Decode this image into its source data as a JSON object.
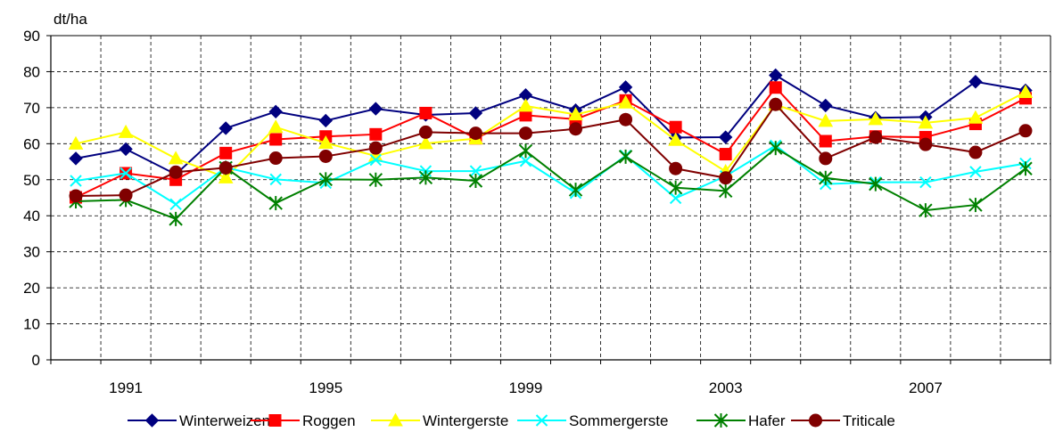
{
  "chart_data": {
    "type": "line",
    "title": "",
    "ylabel": "dt/ha",
    "xlabel": "",
    "ylim": [
      0,
      90
    ],
    "yticks": [
      "0",
      "10",
      "20",
      "30",
      "40",
      "50",
      "60",
      "70",
      "80",
      "90"
    ],
    "x": [
      1990,
      1991,
      1992,
      1993,
      1994,
      1995,
      1996,
      1997,
      1998,
      1999,
      2000,
      2001,
      2002,
      2003,
      2004,
      2005,
      2006,
      2007,
      2008,
      2009
    ],
    "xtick_labels": [
      "1991",
      "1995",
      "1999",
      "2003",
      "2007"
    ],
    "xtick_years": [
      1991,
      1995,
      1999,
      2003,
      2007
    ],
    "grid": "dashed",
    "legend_position": "bottom",
    "series": [
      {
        "name": "Winterweizen",
        "color": "#00007F",
        "marker": "diamond",
        "values": [
          55.9,
          58.5,
          51.5,
          64.3,
          68.9,
          66.4,
          69.7,
          68.0,
          68.5,
          73.5,
          69.3,
          75.7,
          61.7,
          61.8,
          79.0,
          70.6,
          67.2,
          67.4,
          77.2,
          74.8
        ]
      },
      {
        "name": "Roggen",
        "color": "#FF0000",
        "marker": "square",
        "values": [
          45.1,
          51.8,
          50.0,
          57.4,
          61.2,
          62.0,
          62.6,
          68.5,
          61.5,
          67.9,
          66.8,
          72.0,
          64.6,
          57.1,
          75.6,
          60.7,
          62.0,
          61.8,
          65.5,
          72.6
        ]
      },
      {
        "name": "Wintergerste",
        "color": "#FFFF00",
        "marker": "triangle",
        "values": [
          60.0,
          63.2,
          55.9,
          50.6,
          64.6,
          60.2,
          56.6,
          60.1,
          61.4,
          70.5,
          68.1,
          71.4,
          61.0,
          52.3,
          70.8,
          66.3,
          66.8,
          65.8,
          67.2,
          74.3
        ]
      },
      {
        "name": "Sommergerste",
        "color": "#00FFFF",
        "marker": "x",
        "values": [
          49.7,
          51.8,
          43.2,
          53.4,
          50.1,
          49.1,
          55.5,
          52.4,
          52.4,
          55.2,
          46.3,
          56.7,
          44.9,
          51.0,
          59.5,
          48.8,
          49.3,
          49.3,
          52.2,
          54.5
        ]
      },
      {
        "name": "Hafer",
        "color": "#008000",
        "marker": "star",
        "values": [
          44.0,
          44.4,
          39.1,
          53.3,
          43.5,
          50.1,
          50.0,
          50.6,
          49.7,
          58.0,
          47.2,
          56.4,
          47.8,
          46.9,
          58.8,
          50.5,
          48.8,
          41.5,
          43.0,
          53.1
        ]
      },
      {
        "name": "Triticale",
        "color": "#800000",
        "marker": "circle",
        "values": [
          45.5,
          45.7,
          52.1,
          53.3,
          56.0,
          56.5,
          58.8,
          63.2,
          62.9,
          62.9,
          64.1,
          66.7,
          53.1,
          50.5,
          70.9,
          55.9,
          61.8,
          59.8,
          57.6,
          63.6
        ]
      }
    ]
  }
}
